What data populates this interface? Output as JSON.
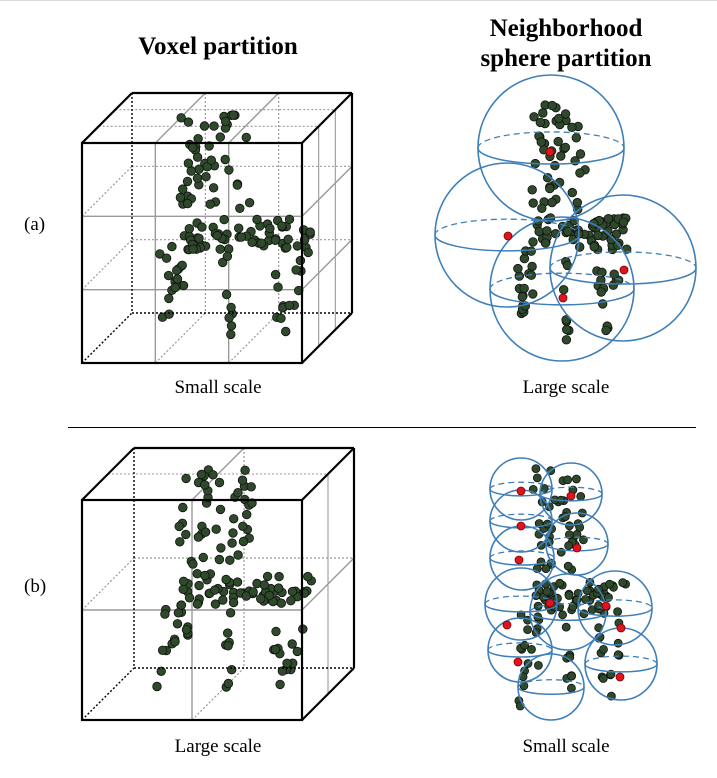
{
  "headers": {
    "voxel": "Voxel partition",
    "sphere_line1": "Neighborhood",
    "sphere_line2": "sphere partition"
  },
  "rows": [
    {
      "label": "(a)",
      "voxel_scale": "Small scale",
      "sphere_scale": "Large scale"
    },
    {
      "label": "(b)",
      "voxel_scale": "Large scale",
      "sphere_scale": "Small scale"
    }
  ],
  "colors": {
    "point": "#2e4a2b",
    "point_outline": "#111111",
    "center_point": "#e0141e",
    "sphere": "#3f7fb8",
    "grid_solid": "#999999",
    "grid_dotted": "#999999",
    "cube_edge": "#000000"
  }
}
